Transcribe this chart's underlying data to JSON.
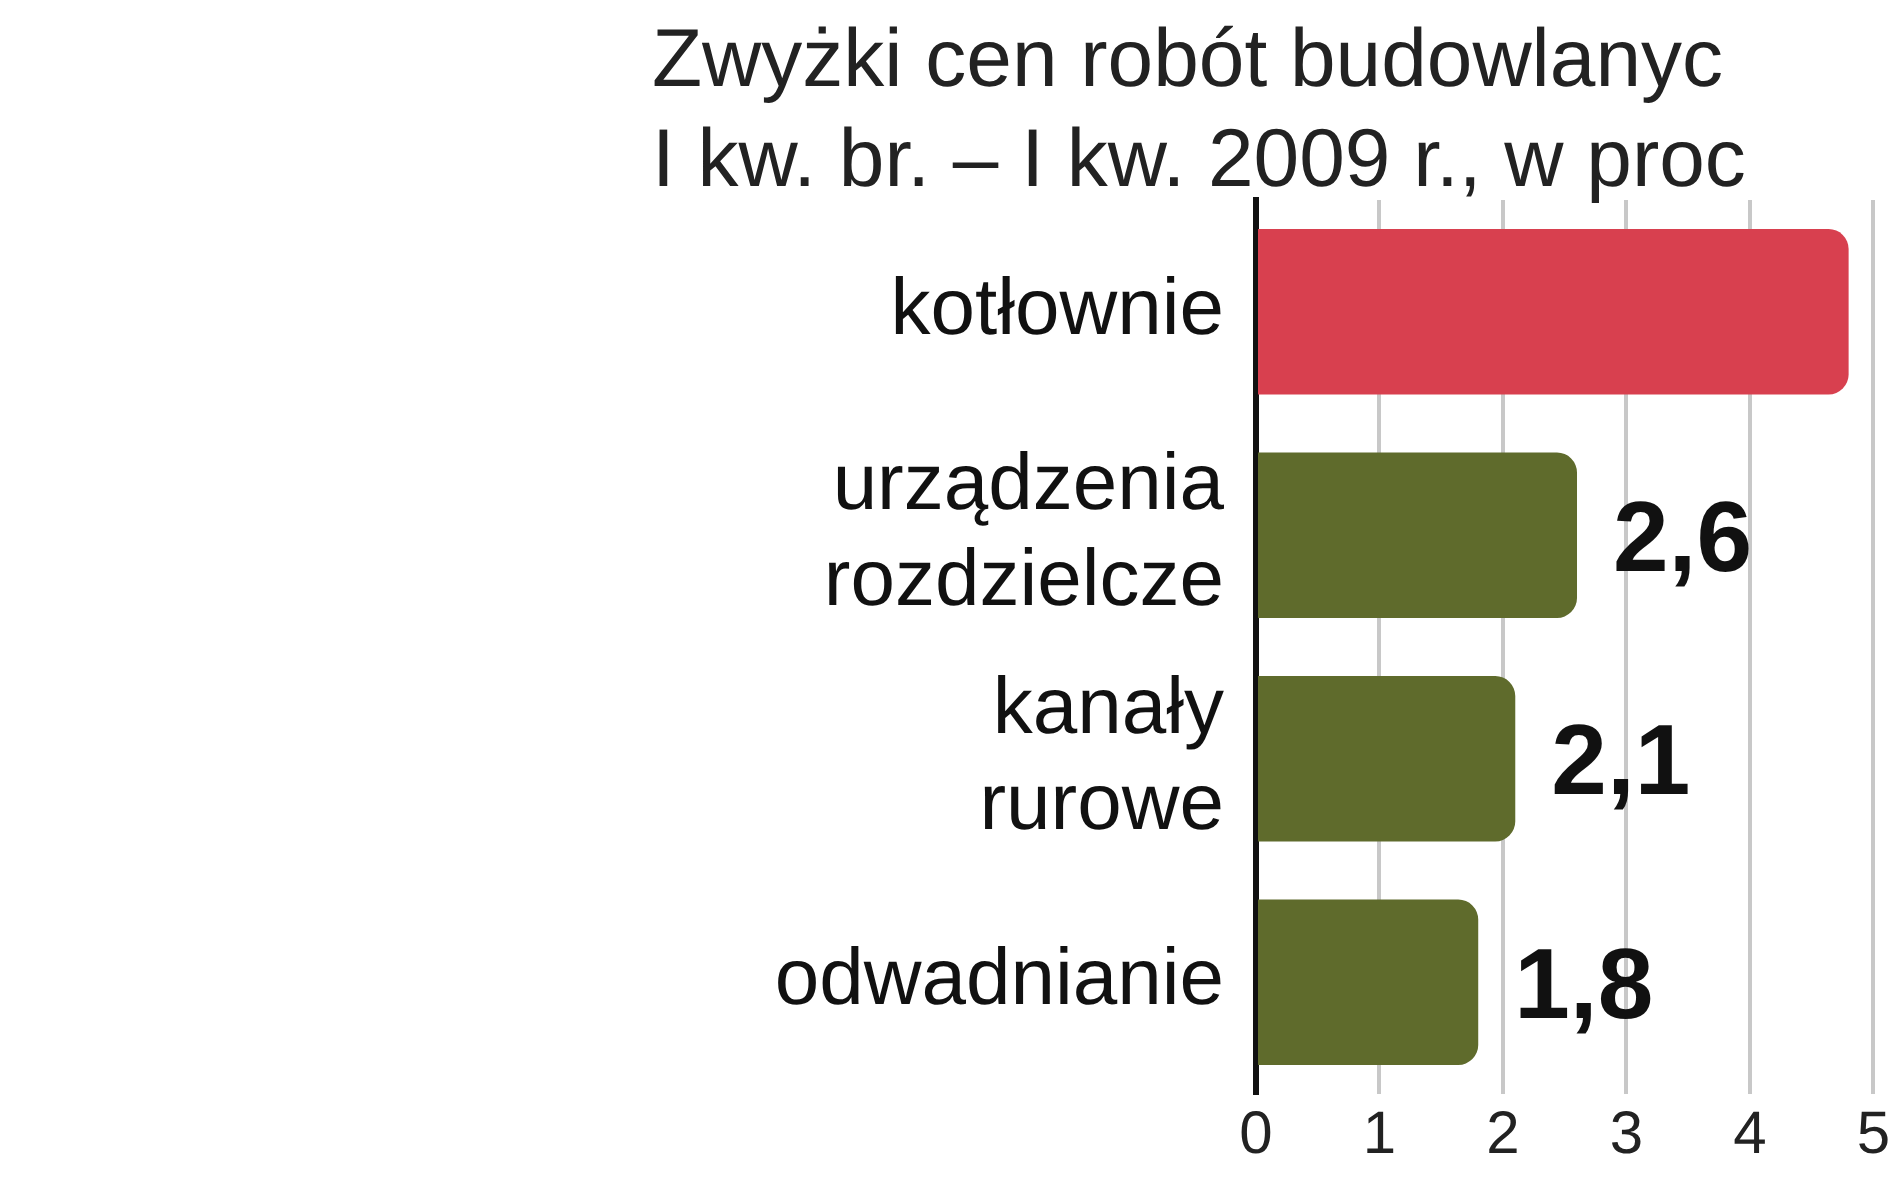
{
  "chart_data": {
    "type": "bar",
    "orientation": "horizontal",
    "title": "Zwyżki cen robót budowlanyc",
    "subtitle": "I kw. br. – I kw. 2009 r., w proc",
    "categories": [
      "kotłownie",
      "urządzenia rozdzielcze",
      "kanały rurowe",
      "odwadnianie"
    ],
    "values": [
      4.8,
      2.6,
      2.1,
      1.8
    ],
    "value_labels": [
      null,
      "2,6",
      "2,1",
      "1,8"
    ],
    "colors": [
      "#d8404f",
      "#5f6b2c",
      "#5f6b2c",
      "#5f6b2c"
    ],
    "xlim": [
      0,
      5
    ],
    "xticks": [
      0,
      1,
      2,
      3,
      4,
      5
    ],
    "grid": "x",
    "legend": false
  }
}
